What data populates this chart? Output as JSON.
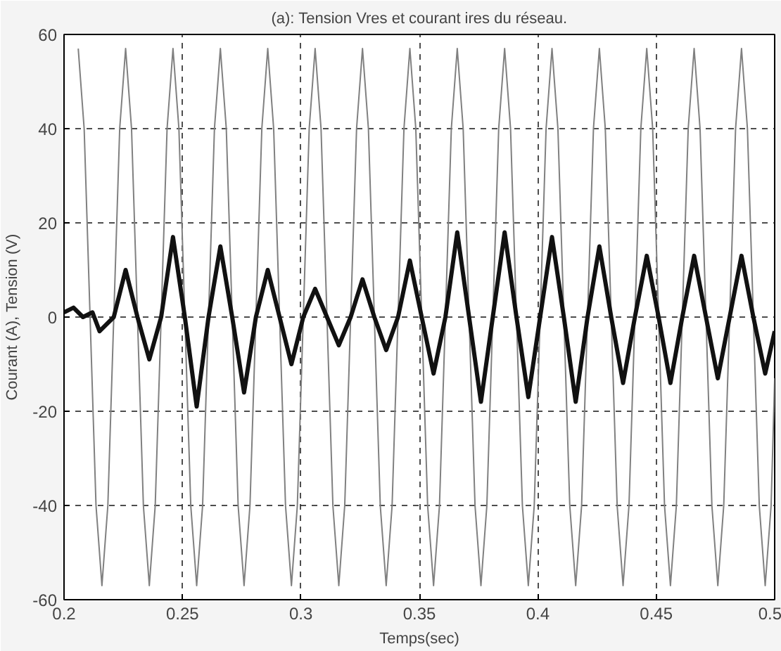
{
  "chart_data": {
    "type": "line",
    "title": "(a): Tension Vres et courant ires du réseau.",
    "xlabel": "Temps(sec)",
    "ylabel": "Courant (A), Tension (V)",
    "xlim": [
      0.2,
      0.5
    ],
    "ylim": [
      -60,
      60
    ],
    "xticks": [
      0.2,
      0.25,
      0.3,
      0.35,
      0.4,
      0.45,
      0.5
    ],
    "yticks": [
      -60,
      -40,
      -20,
      0,
      20,
      40,
      60
    ],
    "grid": true,
    "line_style": "solid",
    "marker": "none",
    "series": [
      {
        "color": "#808080",
        "x": [
          0.206,
          0.2085,
          0.211,
          0.2135,
          0.216,
          0.2185,
          0.221,
          0.2235,
          0.226,
          0.2285,
          0.231,
          0.2335,
          0.236,
          0.2385,
          0.241,
          0.2435,
          0.246,
          0.2485,
          0.251,
          0.2535,
          0.256,
          0.2585,
          0.261,
          0.2635,
          0.266,
          0.2685,
          0.271,
          0.2735,
          0.276,
          0.2785,
          0.281,
          0.2835,
          0.286,
          0.2885,
          0.291,
          0.2935,
          0.296,
          0.2985,
          0.301,
          0.3035,
          0.306,
          0.3085,
          0.311,
          0.3135,
          0.316,
          0.3185,
          0.321,
          0.3235,
          0.326,
          0.3285,
          0.331,
          0.3335,
          0.336,
          0.3385,
          0.341,
          0.3435,
          0.346,
          0.3485,
          0.351,
          0.3535,
          0.356,
          0.3585,
          0.361,
          0.3635,
          0.366,
          0.3685,
          0.371,
          0.3735,
          0.376,
          0.3785,
          0.381,
          0.3835,
          0.386,
          0.3885,
          0.391,
          0.3935,
          0.396,
          0.3985,
          0.401,
          0.4035,
          0.406,
          0.4085,
          0.411,
          0.4135,
          0.416,
          0.4185,
          0.421,
          0.4235,
          0.426,
          0.4285,
          0.431,
          0.4335,
          0.436,
          0.4385,
          0.441,
          0.4435,
          0.446,
          0.4485,
          0.451,
          0.4535,
          0.456,
          0.4585,
          0.461,
          0.4635,
          0.466,
          0.4685,
          0.471,
          0.4735,
          0.476,
          0.4785,
          0.481,
          0.4835,
          0.486,
          0.4885,
          0.491,
          0.4935,
          0.496,
          0.4985,
          0.5
        ],
        "values": [
          57,
          40,
          0,
          -40,
          -57,
          -40,
          0,
          40,
          57,
          40,
          0,
          -40,
          -57,
          -40,
          0,
          40,
          57,
          40,
          0,
          -40,
          -57,
          -40,
          0,
          40,
          57,
          40,
          0,
          -40,
          -57,
          -40,
          0,
          40,
          57,
          40,
          0,
          -40,
          -57,
          -40,
          0,
          40,
          57,
          40,
          0,
          -40,
          -57,
          -40,
          0,
          40,
          57,
          40,
          0,
          -40,
          -57,
          -40,
          0,
          40,
          57,
          40,
          0,
          -40,
          -57,
          -40,
          0,
          40,
          57,
          40,
          0,
          -40,
          -57,
          -40,
          0,
          40,
          57,
          40,
          0,
          -40,
          -57,
          -40,
          0,
          40,
          57,
          40,
          0,
          -40,
          -57,
          -40,
          0,
          40,
          57,
          40,
          0,
          -40,
          -57,
          -40,
          0,
          40,
          57,
          40,
          0,
          -40,
          -57,
          -40,
          0,
          40,
          57,
          40,
          0,
          -40,
          -57,
          -40,
          0,
          40,
          57,
          40,
          0,
          -40,
          -57,
          -40,
          -13
        ]
      },
      {
        "color": "#111111",
        "x": [
          0.2,
          0.204,
          0.208,
          0.212,
          0.215,
          0.221,
          0.226,
          0.231,
          0.236,
          0.241,
          0.246,
          0.251,
          0.256,
          0.261,
          0.266,
          0.271,
          0.276,
          0.281,
          0.286,
          0.291,
          0.296,
          0.301,
          0.306,
          0.311,
          0.316,
          0.321,
          0.326,
          0.331,
          0.336,
          0.341,
          0.346,
          0.351,
          0.356,
          0.361,
          0.366,
          0.371,
          0.376,
          0.381,
          0.386,
          0.391,
          0.396,
          0.401,
          0.406,
          0.411,
          0.416,
          0.421,
          0.426,
          0.431,
          0.436,
          0.441,
          0.446,
          0.451,
          0.456,
          0.461,
          0.466,
          0.471,
          0.476,
          0.481,
          0.486,
          0.491,
          0.496,
          0.5
        ],
        "values": [
          1,
          2,
          0,
          1,
          -3,
          0,
          10,
          0,
          -9,
          0,
          17,
          0,
          -19,
          0,
          15,
          0,
          -16,
          0,
          10,
          0,
          -10,
          0,
          6,
          0,
          -6,
          0,
          8,
          0,
          -7,
          0,
          12,
          0,
          -12,
          0,
          18,
          0,
          -18,
          0,
          18,
          0,
          -17,
          0,
          17,
          0,
          -18,
          0,
          15,
          0,
          -14,
          0,
          13,
          0,
          -14,
          0,
          13,
          0,
          -13,
          0,
          13,
          0,
          -12,
          -3
        ]
      }
    ]
  }
}
